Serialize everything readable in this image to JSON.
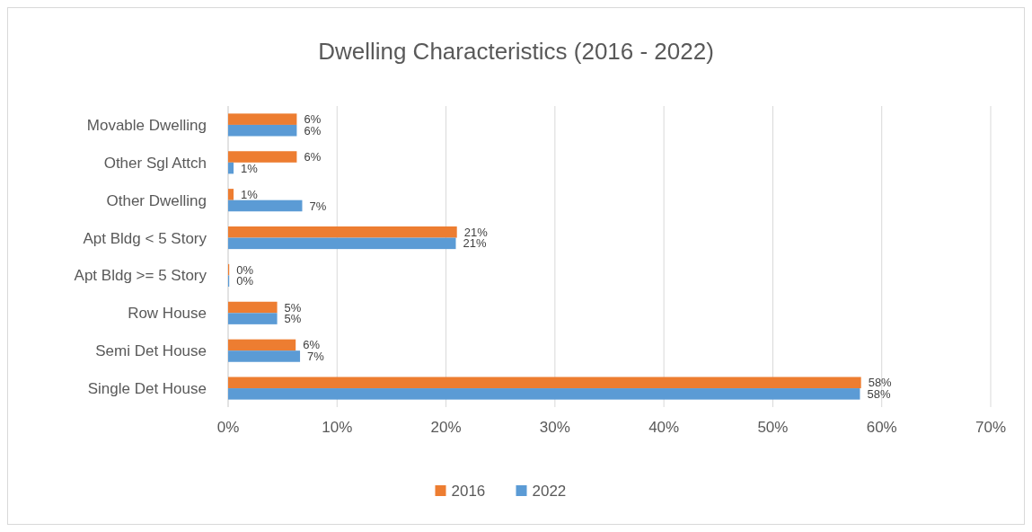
{
  "chart_data": {
    "type": "bar",
    "orientation": "horizontal",
    "title": "Dwelling Characteristics (2016 - 2022)",
    "categories": [
      "Movable Dwelling",
      "Other Sgl Attch",
      "Other Dwelling",
      "Apt Bldg < 5 Story",
      "Apt Bldg >= 5 Story",
      "Row House",
      "Semi Det House",
      "Single Det House"
    ],
    "series": [
      {
        "name": "2016",
        "color": "#ed7d31",
        "values": [
          6.3,
          6.3,
          0.5,
          21.0,
          0.1,
          4.5,
          6.2,
          58.1
        ],
        "value_labels": [
          "6%",
          "6%",
          "1%",
          "21%",
          "0%",
          "5%",
          "6%",
          "58%"
        ]
      },
      {
        "name": "2022",
        "color": "#5b9bd5",
        "values": [
          6.3,
          0.5,
          6.8,
          20.9,
          0.1,
          4.5,
          6.6,
          58.0
        ],
        "value_labels": [
          "6%",
          "1%",
          "7%",
          "21%",
          "0%",
          "5%",
          "7%",
          "58%"
        ]
      }
    ],
    "xlim": [
      0,
      70
    ],
    "xticks": [
      {
        "value": 0,
        "label": "0%"
      },
      {
        "value": 10,
        "label": "10%"
      },
      {
        "value": 20,
        "label": "20%"
      },
      {
        "value": 30,
        "label": "30%"
      },
      {
        "value": 40,
        "label": "40%"
      },
      {
        "value": 50,
        "label": "50%"
      },
      {
        "value": 60,
        "label": "60%"
      },
      {
        "value": 70,
        "label": "70%"
      }
    ],
    "grid": "x",
    "legend": "bottom"
  }
}
